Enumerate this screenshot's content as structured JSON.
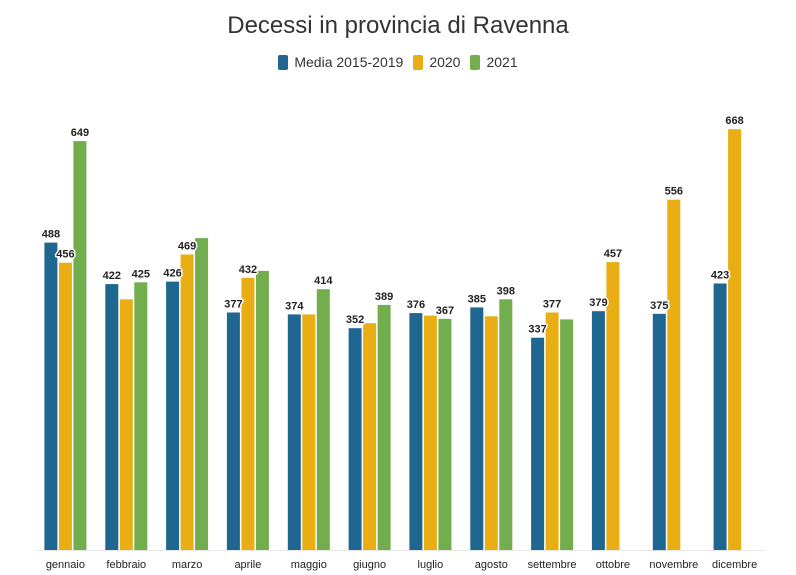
{
  "chart_data": {
    "type": "bar",
    "title": "Decessi in provincia di Ravenna",
    "categories": [
      "gennaio",
      "febbraio",
      "marzo",
      "aprile",
      "maggio",
      "giugno",
      "luglio",
      "agosto",
      "settembre",
      "ottobre",
      "novembre",
      "dicembre"
    ],
    "series": [
      {
        "name": "Media 2015-2019",
        "color": "#1f6690",
        "values": [
          488,
          422,
          426,
          377,
          374,
          352,
          376,
          385,
          337,
          379,
          375,
          423
        ],
        "labels": [
          "488",
          "422",
          "426",
          "377",
          "374",
          "352",
          "376",
          "385",
          "337",
          "379",
          "375",
          "423"
        ]
      },
      {
        "name": "2020",
        "color": "#e8ae13",
        "values": [
          456,
          398,
          469,
          432,
          374,
          360,
          372,
          371,
          377,
          457,
          556,
          668
        ],
        "labels": [
          "456",
          "",
          "469",
          "432",
          "",
          "",
          "",
          "",
          "377",
          "457",
          "556",
          "668"
        ]
      },
      {
        "name": "2021",
        "color": "#72ad4e",
        "values": [
          649,
          425,
          495,
          443,
          414,
          389,
          367,
          398,
          366,
          null,
          null,
          null
        ],
        "labels": [
          "649",
          "425",
          "",
          "",
          "414",
          "389",
          "367",
          "398",
          "",
          "",
          "",
          ""
        ]
      }
    ],
    "ylim": [
      0,
      700
    ],
    "legend_position": "top-center",
    "grid": false,
    "xlabel": "",
    "ylabel": ""
  }
}
